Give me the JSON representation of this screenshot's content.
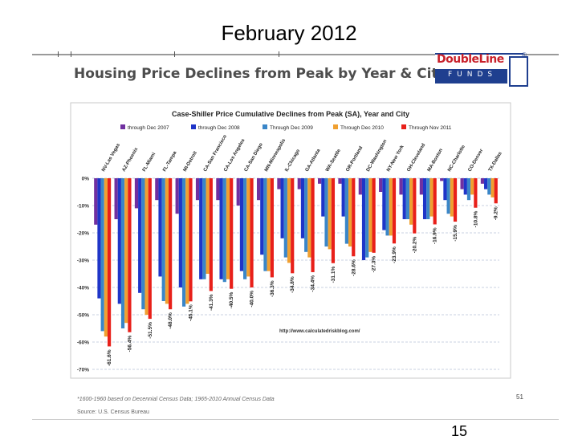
{
  "slide": {
    "title": "February 2012",
    "page_number": "15"
  },
  "panel": {
    "title": "Housing Price Declines from Peak by Year & City",
    "logo_name": "DoubleLine",
    "logo_funds": "FUNDS",
    "logo_reg": "®",
    "side_number": "51",
    "footnote": "*1600-1960 based on Decennial Census Data; 1965-2010 Annual Census Data",
    "source": "Source: U.S. Census Bureau"
  },
  "chart_data": {
    "type": "bar",
    "title": "Case-Shiller Price Cumulative Declines from Peak (SA), Year and City",
    "watermark": "http://www.calculatedriskblog.com/",
    "categories": [
      "NV-Las Vegas",
      "AZ-Phoenix",
      "FL-Miami",
      "FL-Tampa",
      "MI-Detroit",
      "CA-San Francisco",
      "CA-Los Angeles",
      "CA-San Diego",
      "MN-Minneapolis",
      "IL-Chicago",
      "GA-Atlanta",
      "WA-Seattle",
      "OR-Portland",
      "DC-Washington",
      "NY-New York",
      "OH-Cleveland",
      "MA-Boston",
      "NC-Charlotte",
      "CO-Denver",
      "TX-Dallas"
    ],
    "series": [
      {
        "name": "through Dec 2007",
        "color": "#7030a0",
        "values": [
          -17,
          -15,
          -11,
          -8,
          -13,
          -8,
          -8,
          -10,
          -8,
          -4,
          -4,
          -2,
          -2,
          -6,
          -5,
          -6,
          -6,
          -1,
          -4,
          -2
        ]
      },
      {
        "name": "through Dec 2008",
        "color": "#1f35c8",
        "values": [
          -44,
          -46,
          -42,
          -36,
          -40,
          -37,
          -37,
          -34,
          -28,
          -22,
          -22,
          -14,
          -14,
          -30,
          -19,
          -15,
          -15,
          -8,
          -6,
          -4
        ]
      },
      {
        "name": "Through Dec 2009",
        "color": "#3a86c8",
        "values": [
          -56,
          -55,
          -48,
          -45,
          -47,
          -37,
          -38,
          -37,
          -34,
          -29,
          -27,
          -25,
          -24,
          -29,
          -21,
          -15,
          -15,
          -13,
          -8,
          -6
        ]
      },
      {
        "name": "Through Dec 2010",
        "color": "#f0a030",
        "values": [
          -58,
          -53,
          -50,
          -46,
          -46,
          -35,
          -37,
          -36,
          -34,
          -31,
          -29,
          -26,
          -25,
          -27,
          -21,
          -17,
          -14,
          -14,
          -6,
          -7
        ]
      },
      {
        "name": "Through Nov 2011",
        "color": "#e8201a",
        "values": [
          -61.6,
          -56.4,
          -51.5,
          -48.0,
          -45.1,
          -41.3,
          -40.5,
          -40.0,
          -36.3,
          -34.8,
          -34.4,
          -31.1,
          -28.6,
          -27.3,
          -23.9,
          -20.2,
          -16.9,
          -15.9,
          -10.8,
          -9.2
        ]
      }
    ],
    "data_labels": [
      "-61.6%",
      "-56.4%",
      "-51.5%",
      "-48.0%",
      "-45.1%",
      "-41.3%",
      "-40.5%",
      "-40.0%",
      "-36.3%",
      "-34.8%",
      "-34.4%",
      "-31.1%",
      "-28.6%",
      "-27.3%",
      "-23.9%",
      "-20.2%",
      "-16.9%",
      "-15.9%",
      "-10.8%",
      "-9.2%"
    ],
    "y_ticks": [
      0,
      -10,
      -20,
      -30,
      -40,
      -50,
      -60,
      -70
    ],
    "y_tick_labels": [
      "0%",
      "-10%",
      "-20%",
      "-30%",
      "-40%",
      "-50%",
      "-60%",
      "-70%"
    ],
    "ylim": [
      -70,
      0
    ],
    "grid": true,
    "legend_position": "top"
  }
}
